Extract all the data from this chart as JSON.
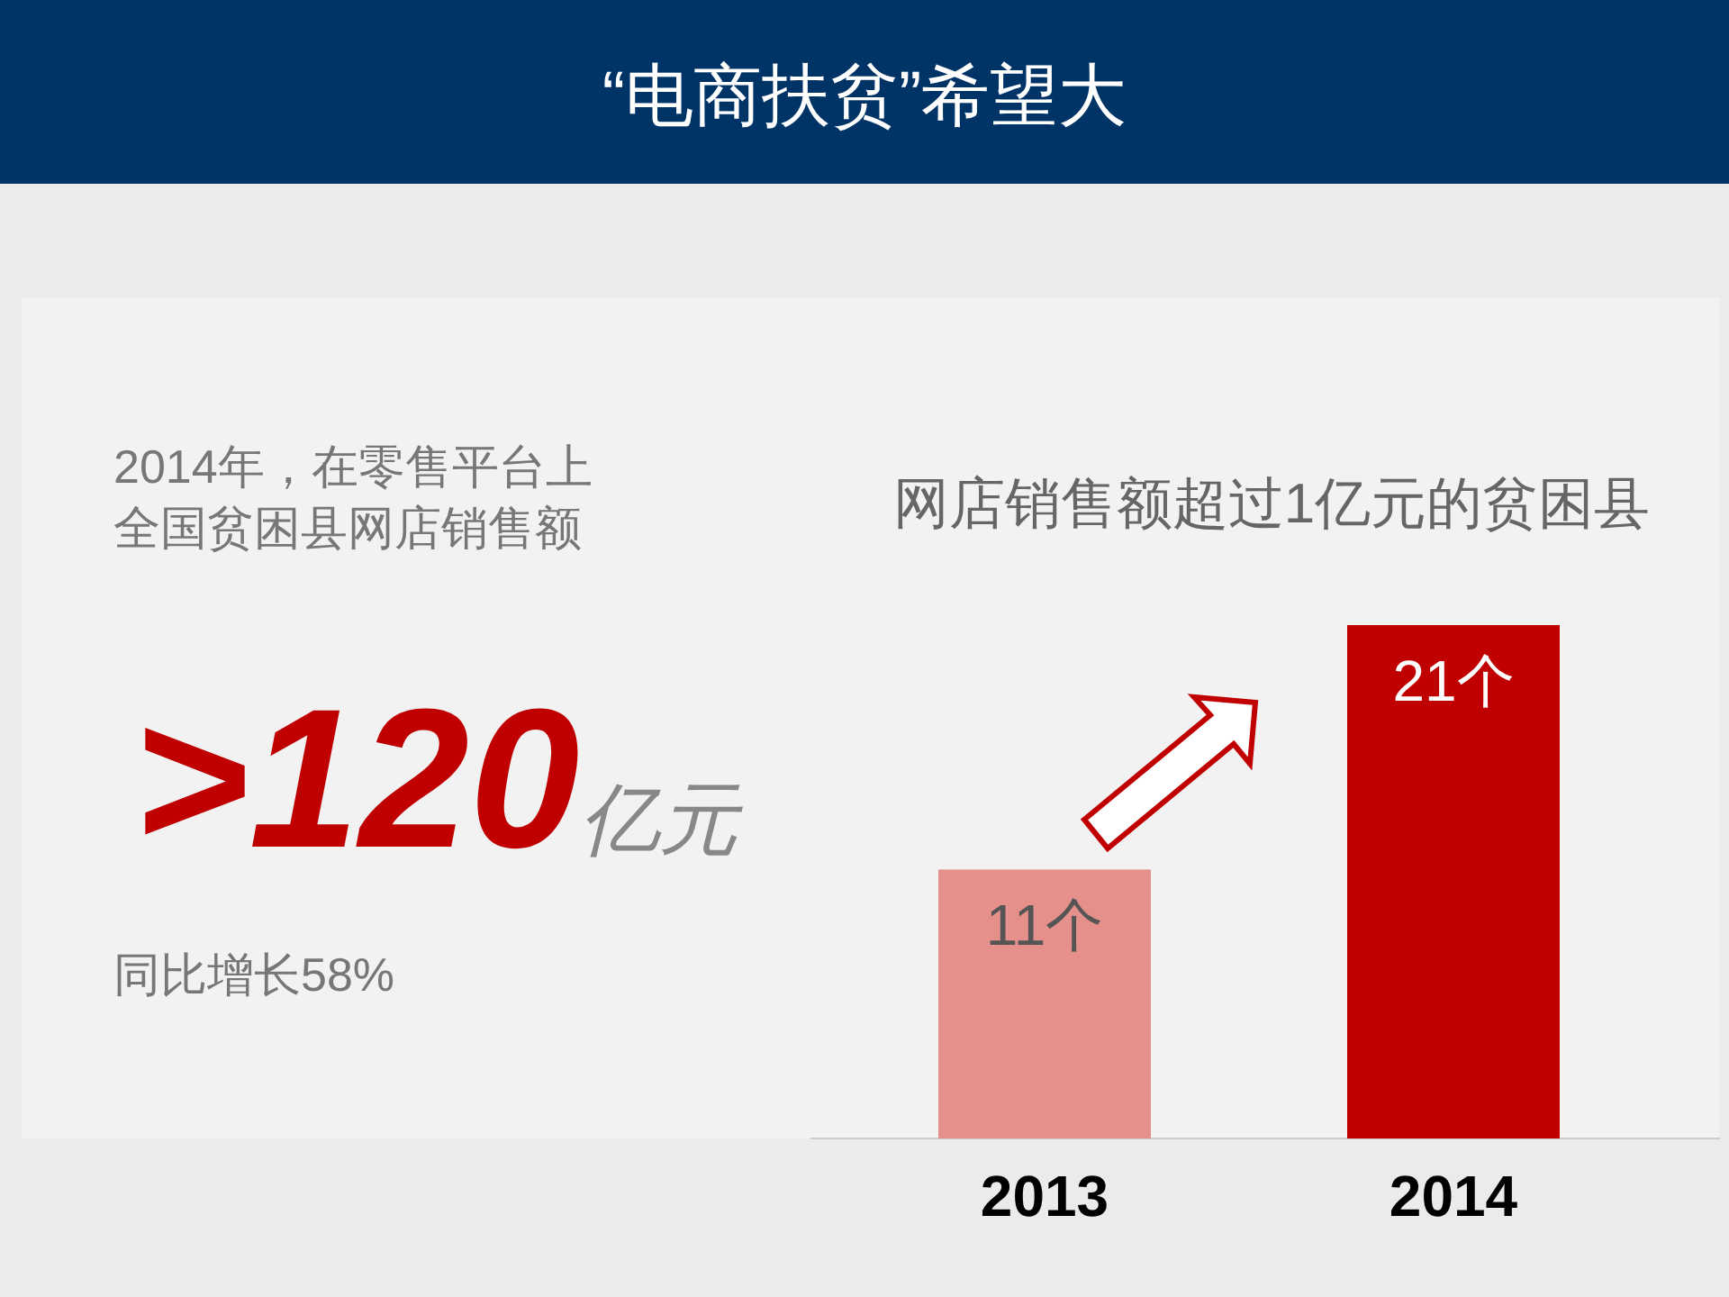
{
  "chart_data": [
    {
      "type": "other",
      "title": "“电商扶贫”希望大",
      "annotations": [
        "2014年，在零售平台上",
        "全国贫困县网店销售额",
        ">120亿元",
        "同比增长58%"
      ]
    },
    {
      "type": "bar",
      "title": "网店销售额超过1亿元的贫困县",
      "categories": [
        "2013",
        "2014"
      ],
      "values": [
        11,
        21
      ],
      "colors": [
        "#e5908a",
        "#c00000"
      ],
      "value_labels": [
        "11个",
        "21个"
      ]
    }
  ]
}
